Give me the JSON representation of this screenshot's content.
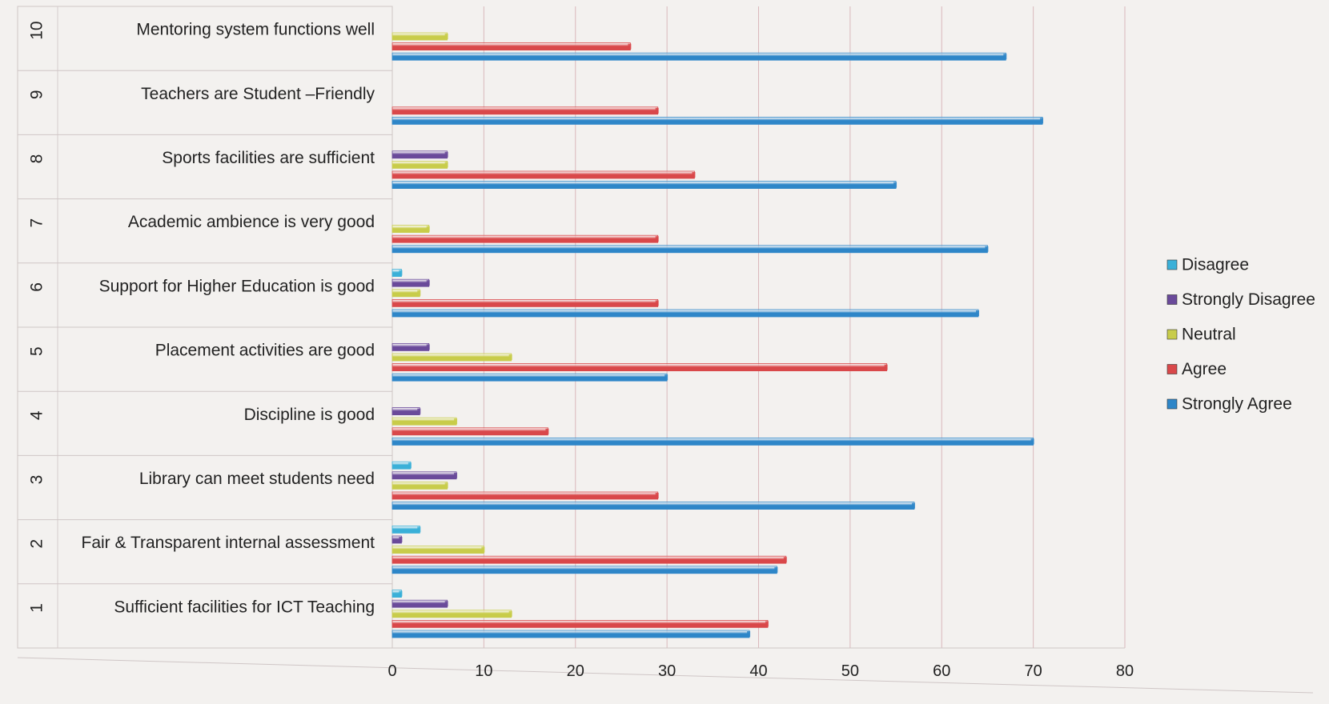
{
  "chart_data": {
    "type": "bar",
    "orientation": "horizontal",
    "title": "",
    "xlabel": "",
    "ylabel": "",
    "xlim": [
      0,
      80
    ],
    "x_ticks": [
      0,
      10,
      20,
      30,
      40,
      50,
      60,
      70,
      80
    ],
    "grid": "vertical",
    "legend_position": "right",
    "row_numbers": [
      "1",
      "2",
      "3",
      "4",
      "5",
      "6",
      "7",
      "8",
      "9",
      "10"
    ],
    "categories": [
      "Sufficient facilities for ICT Teaching",
      "Fair & Transparent internal assessment",
      "Library can meet students need",
      "Discipline is good",
      "Placement activities are good",
      "Support for Higher Education is good",
      "Academic ambience is very good",
      "Sports facilities are sufficient",
      "Teachers are Student –Friendly",
      "Mentoring system functions well"
    ],
    "series": [
      {
        "name": "Strongly Agree",
        "color": "#2e86c8",
        "values": [
          39,
          42,
          57,
          70,
          30,
          64,
          65,
          55,
          71,
          67
        ]
      },
      {
        "name": "Agree",
        "color": "#d9484a",
        "values": [
          41,
          43,
          29,
          17,
          54,
          29,
          29,
          33,
          29,
          26
        ]
      },
      {
        "name": "Neutral",
        "color": "#c8cc4a",
        "values": [
          13,
          10,
          6,
          7,
          13,
          3,
          4,
          6,
          0,
          6
        ]
      },
      {
        "name": "Strongly Disagree",
        "color": "#6a4a9a",
        "values": [
          6,
          1,
          7,
          3,
          4,
          4,
          0,
          6,
          0,
          0
        ]
      },
      {
        "name": "Disagree",
        "color": "#3ab0d8",
        "values": [
          1,
          3,
          2,
          0,
          0,
          1,
          0,
          0,
          0,
          0
        ]
      }
    ],
    "legend_order": [
      "Disagree",
      "Strongly Disagree",
      "Neutral",
      "Agree",
      "Strongly Agree"
    ]
  }
}
